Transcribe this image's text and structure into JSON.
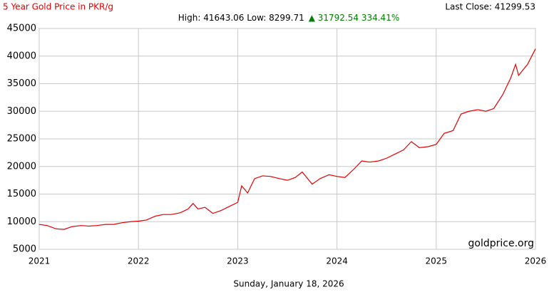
{
  "chart_data": {
    "type": "line",
    "title": "5 Year Gold Price in PKR/g",
    "last_close": "Last Close: 41299.53",
    "stats": "High: 41643.06 Low: 8299.71",
    "change": "▲ 31792.54 334.41%",
    "source": "goldprice.org",
    "x_label": "Sunday, January 18, 2026",
    "xlim": [
      2021,
      2026
    ],
    "xticks": [
      2021,
      2022,
      2023,
      2024,
      2025,
      2026
    ],
    "ylim": [
      5000,
      45000
    ],
    "yticks": [
      5000,
      10000,
      15000,
      20000,
      25000,
      30000,
      35000,
      40000,
      45000
    ],
    "grid": true,
    "series": [
      {
        "name": "Gold Price PKR/g",
        "color": "#e00000",
        "x": [
          2021.0,
          2021.08,
          2021.17,
          2021.25,
          2021.33,
          2021.42,
          2021.5,
          2021.58,
          2021.67,
          2021.75,
          2021.83,
          2021.92,
          2022.0,
          2022.08,
          2022.17,
          2022.25,
          2022.33,
          2022.42,
          2022.5,
          2022.55,
          2022.6,
          2022.67,
          2022.75,
          2022.83,
          2022.92,
          2023.0,
          2023.04,
          2023.1,
          2023.17,
          2023.25,
          2023.33,
          2023.42,
          2023.5,
          2023.58,
          2023.65,
          2023.75,
          2023.83,
          2023.92,
          2024.0,
          2024.08,
          2024.17,
          2024.25,
          2024.33,
          2024.42,
          2024.5,
          2024.58,
          2024.67,
          2024.75,
          2024.83,
          2024.92,
          2025.0,
          2025.08,
          2025.17,
          2025.25,
          2025.33,
          2025.42,
          2025.5,
          2025.58,
          2025.67,
          2025.75,
          2025.8,
          2025.83,
          2025.92,
          2026.0
        ],
        "values": [
          9500,
          9300,
          8700,
          8600,
          9100,
          9300,
          9200,
          9300,
          9500,
          9500,
          9800,
          10000,
          10100,
          10300,
          11000,
          11300,
          11300,
          11600,
          12300,
          13300,
          12300,
          12600,
          11500,
          12000,
          12800,
          13500,
          16500,
          15200,
          17800,
          18300,
          18200,
          17800,
          17500,
          18000,
          19000,
          16800,
          17800,
          18500,
          18200,
          18000,
          19500,
          21000,
          20800,
          21000,
          21500,
          22200,
          23000,
          24500,
          23400,
          23600,
          24000,
          26000,
          26500,
          29500,
          30000,
          30300,
          30000,
          30500,
          33000,
          36000,
          38500,
          36500,
          38500,
          41300
        ]
      }
    ]
  }
}
